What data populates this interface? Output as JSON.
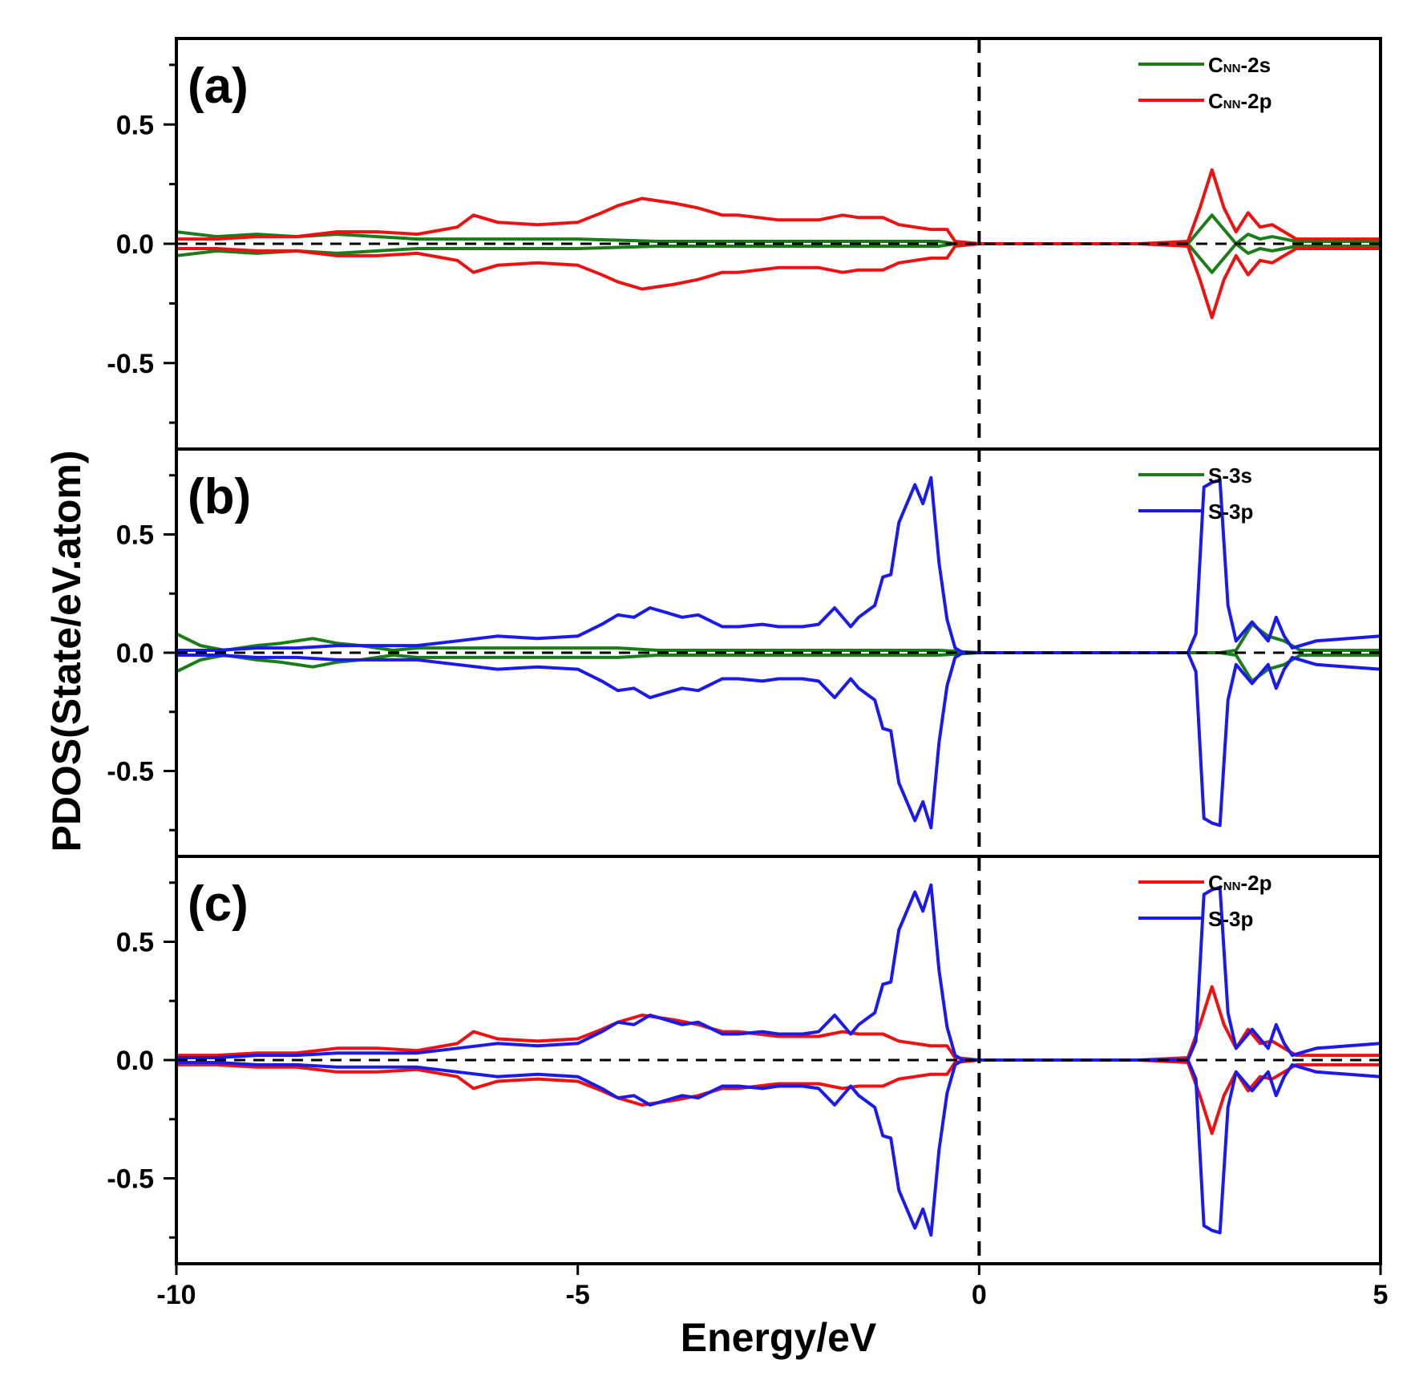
{
  "chart_data": {
    "type": "line",
    "xlabel": "Energy/eV",
    "ylabel": "PDOS(State/eV.atom)",
    "xlim": [
      -10,
      5
    ],
    "xticks": [
      "-10",
      "-5",
      "0",
      "5"
    ],
    "xtick_values": [
      -10,
      -5,
      0,
      5
    ],
    "fermi_level": 0,
    "grid": false,
    "spin_mirrored": true,
    "legend_position": "top-right",
    "colors": {
      "green": "#1a7d1a",
      "red": "#ee1111",
      "blue": "#1a1aee",
      "reference": "#000000"
    },
    "panels": [
      {
        "label": "(a)",
        "ylim": [
          -0.8,
          0.8
        ],
        "yticks": [
          "0.5",
          "0.0",
          "-0.5"
        ],
        "ytick_values": [
          0.5,
          0.0,
          -0.5
        ],
        "series": [
          {
            "name": "CNN-2s",
            "name_main": "C",
            "name_sub": "NN",
            "name_rest": "-2s",
            "color": "#1a7d1a",
            "x": [
              -10,
              -9.5,
              -9,
              -8.5,
              -8,
              -7,
              -6,
              -5,
              -4,
              -3,
              -2,
              -1,
              -0.5,
              -0.3,
              0,
              2,
              2.6,
              2.75,
              2.9,
              3.05,
              3.2,
              3.35,
              3.5,
              3.65,
              3.8,
              3.95,
              4.1,
              4.5,
              5
            ],
            "values": [
              0.05,
              0.03,
              0.04,
              0.03,
              0.04,
              0.02,
              0.02,
              0.02,
              0.01,
              0.01,
              0.01,
              0.01,
              0.01,
              0.0,
              0.0,
              0.0,
              0.0,
              0.06,
              0.12,
              0.06,
              0.0,
              0.04,
              0.02,
              0.03,
              0.02,
              0.01,
              0.01,
              0.01,
              0.01
            ]
          },
          {
            "name": "CNN-2p",
            "name_main": "C",
            "name_sub": "NN",
            "name_rest": "-2p",
            "color": "#ee1111",
            "x": [
              -10,
              -9.5,
              -9,
              -8.5,
              -8,
              -7.5,
              -7,
              -6.5,
              -6.3,
              -6,
              -5.5,
              -5,
              -4.7,
              -4.5,
              -4.2,
              -4,
              -3.8,
              -3.5,
              -3.2,
              -3,
              -2.5,
              -2,
              -1.7,
              -1.5,
              -1.2,
              -1,
              -0.8,
              -0.6,
              -0.4,
              -0.3,
              0,
              2,
              2.6,
              2.75,
              2.9,
              3.05,
              3.2,
              3.35,
              3.5,
              3.65,
              3.8,
              3.95,
              4.2,
              4.5,
              5
            ],
            "values": [
              0.02,
              0.02,
              0.03,
              0.03,
              0.05,
              0.05,
              0.04,
              0.07,
              0.12,
              0.09,
              0.08,
              0.09,
              0.13,
              0.16,
              0.19,
              0.18,
              0.17,
              0.15,
              0.12,
              0.12,
              0.1,
              0.1,
              0.12,
              0.11,
              0.11,
              0.08,
              0.07,
              0.06,
              0.06,
              0.01,
              0.0,
              0.0,
              0.01,
              0.15,
              0.31,
              0.15,
              0.05,
              0.13,
              0.07,
              0.08,
              0.05,
              0.02,
              0.02,
              0.02,
              0.02
            ]
          }
        ]
      },
      {
        "label": "(b)",
        "ylim": [
          -0.8,
          0.8
        ],
        "yticks": [
          "0.5",
          "0.0",
          "-0.5"
        ],
        "ytick_values": [
          0.5,
          0.0,
          -0.5
        ],
        "series": [
          {
            "name": "S-3s",
            "color": "#1a7d1a",
            "x": [
              -10,
              -9.7,
              -9.4,
              -9,
              -8.7,
              -8.3,
              -8,
              -7.7,
              -7.3,
              -7,
              -6.5,
              -6,
              -5.5,
              -5,
              -4.5,
              -4,
              -3.5,
              -3,
              -2,
              -1,
              -0.5,
              0,
              2,
              2.7,
              3.0,
              3.2,
              3.4,
              3.6,
              3.8,
              4.0,
              4.5,
              5
            ],
            "values": [
              0.08,
              0.03,
              0.01,
              0.03,
              0.04,
              0.06,
              0.04,
              0.03,
              0.01,
              0.02,
              0.02,
              0.02,
              0.02,
              0.02,
              0.02,
              0.01,
              0.01,
              0.01,
              0.01,
              0.01,
              0.01,
              0.0,
              0.0,
              0.0,
              0.0,
              0.01,
              0.12,
              0.07,
              0.05,
              0.01,
              0.01,
              0.01
            ]
          },
          {
            "name": "S-3p",
            "color": "#1a1aee",
            "x": [
              -10,
              -9.5,
              -9,
              -8.5,
              -8,
              -7.5,
              -7,
              -6.5,
              -6,
              -5.5,
              -5,
              -4.7,
              -4.5,
              -4.3,
              -4.1,
              -3.9,
              -3.7,
              -3.5,
              -3.2,
              -3,
              -2.7,
              -2.5,
              -2.2,
              -2,
              -1.8,
              -1.6,
              -1.5,
              -1.3,
              -1.2,
              -1.1,
              -1.0,
              -0.8,
              -0.7,
              -0.6,
              -0.5,
              -0.4,
              -0.3,
              -0.2,
              0,
              2,
              2.6,
              2.7,
              2.8,
              2.9,
              3.0,
              3.1,
              3.2,
              3.4,
              3.5,
              3.6,
              3.7,
              3.8,
              3.9,
              4.2,
              4.6,
              5
            ],
            "values": [
              0.01,
              0.01,
              0.02,
              0.02,
              0.03,
              0.03,
              0.03,
              0.05,
              0.07,
              0.06,
              0.07,
              0.12,
              0.16,
              0.15,
              0.19,
              0.17,
              0.15,
              0.16,
              0.11,
              0.11,
              0.12,
              0.11,
              0.11,
              0.12,
              0.19,
              0.11,
              0.15,
              0.2,
              0.32,
              0.33,
              0.55,
              0.71,
              0.63,
              0.74,
              0.38,
              0.14,
              0.02,
              0.0,
              0.0,
              0.0,
              0.0,
              0.08,
              0.7,
              0.72,
              0.73,
              0.2,
              0.05,
              0.13,
              0.09,
              0.05,
              0.15,
              0.07,
              0.02,
              0.05,
              0.06,
              0.07
            ]
          }
        ]
      },
      {
        "label": "(c)",
        "ylim": [
          -0.8,
          0.8
        ],
        "yticks": [
          "0.5",
          "0.0",
          "-0.5"
        ],
        "ytick_values": [
          0.5,
          0.0,
          -0.5
        ],
        "series": [
          {
            "name": "CNN-2p",
            "name_main": "C",
            "name_sub": "NN",
            "name_rest": "-2p",
            "color": "#ee1111",
            "x": [
              -10,
              -9.5,
              -9,
              -8.5,
              -8,
              -7.5,
              -7,
              -6.5,
              -6.3,
              -6,
              -5.5,
              -5,
              -4.7,
              -4.5,
              -4.2,
              -4,
              -3.8,
              -3.5,
              -3.2,
              -3,
              -2.5,
              -2,
              -1.7,
              -1.5,
              -1.2,
              -1,
              -0.8,
              -0.6,
              -0.4,
              -0.3,
              0,
              2,
              2.6,
              2.75,
              2.9,
              3.05,
              3.2,
              3.35,
              3.5,
              3.65,
              3.8,
              3.95,
              4.2,
              4.5,
              5
            ],
            "values": [
              0.02,
              0.02,
              0.03,
              0.03,
              0.05,
              0.05,
              0.04,
              0.07,
              0.12,
              0.09,
              0.08,
              0.09,
              0.13,
              0.16,
              0.19,
              0.18,
              0.17,
              0.15,
              0.12,
              0.12,
              0.1,
              0.1,
              0.12,
              0.11,
              0.11,
              0.08,
              0.07,
              0.06,
              0.06,
              0.01,
              0.0,
              0.0,
              0.01,
              0.15,
              0.31,
              0.15,
              0.05,
              0.13,
              0.07,
              0.08,
              0.05,
              0.02,
              0.02,
              0.02,
              0.02
            ]
          },
          {
            "name": "S-3p",
            "color": "#1a1aee",
            "x": [
              -10,
              -9.5,
              -9,
              -8.5,
              -8,
              -7.5,
              -7,
              -6.5,
              -6,
              -5.5,
              -5,
              -4.7,
              -4.5,
              -4.3,
              -4.1,
              -3.9,
              -3.7,
              -3.5,
              -3.2,
              -3,
              -2.7,
              -2.5,
              -2.2,
              -2,
              -1.8,
              -1.6,
              -1.5,
              -1.3,
              -1.2,
              -1.1,
              -1.0,
              -0.8,
              -0.7,
              -0.6,
              -0.5,
              -0.4,
              -0.3,
              -0.2,
              0,
              2,
              2.6,
              2.7,
              2.8,
              2.9,
              3.0,
              3.1,
              3.2,
              3.4,
              3.5,
              3.6,
              3.7,
              3.8,
              3.9,
              4.2,
              4.6,
              5
            ],
            "values": [
              0.01,
              0.01,
              0.02,
              0.02,
              0.03,
              0.03,
              0.03,
              0.05,
              0.07,
              0.06,
              0.07,
              0.12,
              0.16,
              0.15,
              0.19,
              0.17,
              0.15,
              0.16,
              0.11,
              0.11,
              0.12,
              0.11,
              0.11,
              0.12,
              0.19,
              0.11,
              0.15,
              0.2,
              0.32,
              0.33,
              0.55,
              0.71,
              0.63,
              0.74,
              0.38,
              0.14,
              0.02,
              0.0,
              0.0,
              0.0,
              0.0,
              0.08,
              0.7,
              0.72,
              0.73,
              0.2,
              0.05,
              0.13,
              0.09,
              0.05,
              0.15,
              0.07,
              0.02,
              0.05,
              0.06,
              0.07
            ]
          }
        ]
      }
    ]
  }
}
